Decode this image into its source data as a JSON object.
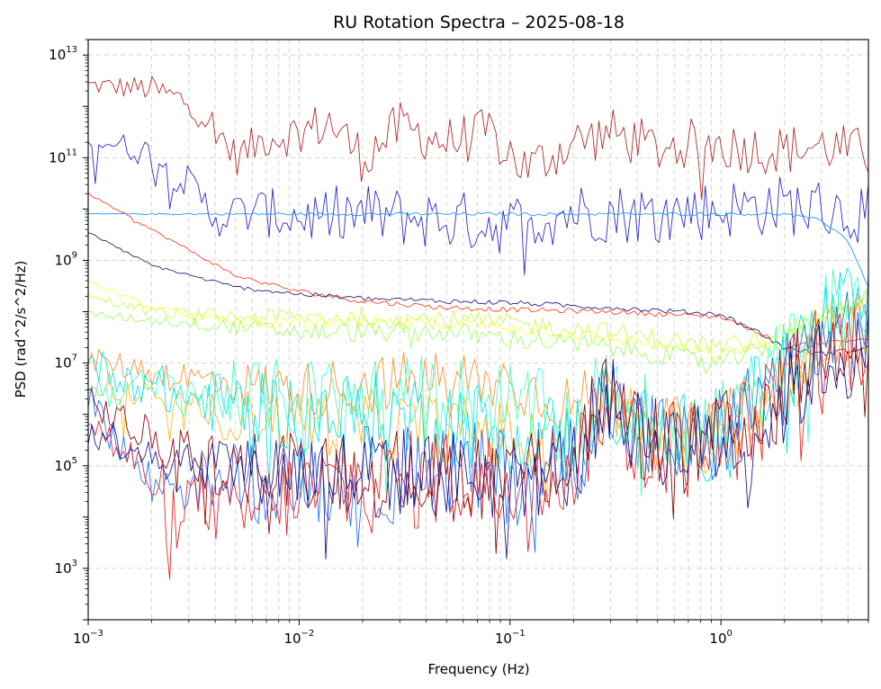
{
  "chart_data": {
    "type": "line",
    "title": "RU Rotation Spectra – 2025-08-18",
    "xlabel": "Frequency (Hz)",
    "ylabel": "PSD (rad^2/s^2/Hz)",
    "xscale": "log",
    "yscale": "log",
    "xlim": [
      0.001,
      5
    ],
    "ylim": [
      100,
      20000000000000.0
    ],
    "grid": true,
    "legend": "none",
    "x_ticks": [
      {
        "value": 0.001,
        "base": "10",
        "exp": "−3"
      },
      {
        "value": 0.01,
        "base": "10",
        "exp": "−2"
      },
      {
        "value": 0.1,
        "base": "10",
        "exp": "−1"
      },
      {
        "value": 1,
        "base": "10",
        "exp": "0"
      }
    ],
    "y_ticks": [
      {
        "value": 1000,
        "base": "10",
        "exp": "3"
      },
      {
        "value": 100000,
        "base": "10",
        "exp": "5"
      },
      {
        "value": 10000000,
        "base": "10",
        "exp": "7"
      },
      {
        "value": 1000000000,
        "base": "10",
        "exp": "9"
      },
      {
        "value": 100000000000,
        "base": "10",
        "exp": "11"
      },
      {
        "value": 10000000000000,
        "base": "10",
        "exp": "13"
      }
    ],
    "series": [
      {
        "color": "#b22222",
        "x": [
          0.001,
          0.002,
          0.003,
          0.004,
          0.005,
          0.007,
          0.01,
          0.014,
          0.02,
          0.03,
          0.05,
          0.08,
          0.12,
          0.2,
          0.3,
          0.5,
          0.8,
          1.2,
          2,
          3,
          5
        ],
        "y": [
          2600000000000.0,
          2200000000000.0,
          1200000000000.0,
          400000000000.0,
          100000000000.0,
          250000000000.0,
          300000000000.0,
          500000000000.0,
          100000000000.0,
          400000000000.0,
          200000000000.0,
          300000000000.0,
          60000000000.0,
          200000000000.0,
          300000000000.0,
          150000000000.0,
          200000000000.0,
          160000000000.0,
          140000000000.0,
          170000000000.0,
          120000000000.0
        ],
        "jitter": 0.5
      },
      {
        "color": "#2222cc",
        "x": [
          0.001,
          0.002,
          0.003,
          0.004,
          0.006,
          0.01,
          0.02,
          0.05,
          0.1,
          0.2,
          0.5,
          1,
          2,
          3,
          5
        ],
        "y": [
          250000000000.0,
          120000000000.0,
          30000000000.0,
          7000000000.0,
          9000000000.0,
          7000000000.0,
          8000000000.0,
          6000000000.0,
          5000000000.0,
          9000000000.0,
          8000000000.0,
          10000000000.0,
          12000000000.0,
          10000000000.0,
          8000000000.0
        ],
        "jitter": 0.6
      },
      {
        "color": "#1e90ff",
        "x": [
          0.001,
          0.01,
          0.1,
          0.5,
          1,
          2,
          3,
          4,
          5
        ],
        "y": [
          8000000000.0,
          8000000000.0,
          8000000000.0,
          8000000000.0,
          8000000000.0,
          8000000000.0,
          6000000000.0,
          2500000000.0,
          300000000.0
        ],
        "jitter": 0.03
      },
      {
        "color": "#ff3b1f",
        "x": [
          0.001,
          0.002,
          0.005,
          0.01,
          0.02,
          0.05,
          0.1,
          0.3,
          1,
          1.5,
          2,
          3,
          5
        ],
        "y": [
          20000000000.0,
          4000000000.0,
          500000000.0,
          250000000.0,
          160000000.0,
          120000000.0,
          110000000.0,
          100000000.0,
          80000000.0,
          40000000.0,
          20000000.0,
          25000000.0,
          30000000.0
        ],
        "jitter": 0.05
      },
      {
        "color": "#191970",
        "x": [
          0.001,
          0.002,
          0.005,
          0.01,
          0.02,
          0.05,
          0.1,
          0.3,
          1,
          1.5,
          2,
          3,
          5
        ],
        "y": [
          3500000000.0,
          800000000.0,
          300000000.0,
          220000000.0,
          180000000.0,
          160000000.0,
          150000000.0,
          120000000.0,
          90000000.0,
          40000000.0,
          20000000.0,
          15000000.0,
          20000000.0
        ],
        "jitter": 0.05
      },
      {
        "color": "#ffff33",
        "x": [
          0.001,
          0.002,
          0.005,
          0.01,
          0.05,
          0.1,
          0.3,
          1,
          2,
          3,
          5
        ],
        "y": [
          400000000.0,
          120000000.0,
          60000000.0,
          60000000.0,
          60000000.0,
          50000000.0,
          30000000.0,
          15000000.0,
          30000000.0,
          80000000.0,
          150000000.0
        ],
        "jitter": 0.12
      },
      {
        "color": "#c8ff3c",
        "x": [
          0.001,
          0.002,
          0.005,
          0.01,
          0.05,
          0.1,
          0.3,
          1,
          2,
          3,
          5
        ],
        "y": [
          200000000.0,
          100000000.0,
          80000000.0,
          80000000.0,
          70000000.0,
          60000000.0,
          40000000.0,
          20000000.0,
          40000000.0,
          100000000.0,
          200000000.0
        ],
        "jitter": 0.2
      },
      {
        "color": "#9cff5a",
        "x": [
          0.001,
          0.003,
          0.01,
          0.05,
          0.1,
          0.3,
          1,
          2,
          3,
          5
        ],
        "y": [
          90000000.0,
          60000000.0,
          40000000.0,
          40000000.0,
          30000000.0,
          20000000.0,
          10000000.0,
          25000000.0,
          90000000.0,
          200000000.0
        ],
        "jitter": 0.2
      },
      {
        "color": "#ff8c28",
        "x": [
          0.001,
          0.003,
          0.01,
          0.05,
          0.1,
          0.2,
          0.28,
          0.4,
          0.8,
          1.5,
          3,
          5
        ],
        "y": [
          12000000.0,
          5000000.0,
          3000000.0,
          5000000.0,
          4000000.0,
          1500000.0,
          3000000.0,
          1000000.0,
          400000.0,
          2000000.0,
          30000000.0,
          80000000.0
        ],
        "jitter": 0.6
      },
      {
        "color": "#ffb414",
        "x": [
          0.001,
          0.003,
          0.01,
          0.05,
          0.1,
          0.2,
          0.28,
          0.4,
          0.8,
          1.5,
          3,
          5
        ],
        "y": [
          5000000.0,
          1000000.0,
          800000.0,
          500000.0,
          400000.0,
          300000.0,
          2500000.0,
          600000.0,
          300000.0,
          1000000.0,
          20000000.0,
          60000000.0
        ],
        "jitter": 0.7
      },
      {
        "color": "#3cffc8",
        "x": [
          0.001,
          0.003,
          0.01,
          0.05,
          0.1,
          0.2,
          0.28,
          0.4,
          0.8,
          1.5,
          3,
          5
        ],
        "y": [
          3000000.0,
          3000000.0,
          2000000.0,
          2000000.0,
          1500000.0,
          600000.0,
          3000000.0,
          1000000.0,
          500000.0,
          3000000.0,
          80000000.0,
          200000000.0
        ],
        "jitter": 0.9
      },
      {
        "color": "#00e6e6",
        "x": [
          0.001,
          0.003,
          0.01,
          0.05,
          0.1,
          0.2,
          0.28,
          0.4,
          0.8,
          1.5,
          3,
          5
        ],
        "y": [
          10000000.0,
          2000000.0,
          1000000.0,
          800000.0,
          500000.0,
          300000.0,
          2000000.0,
          500000.0,
          300000.0,
          2000000.0,
          60000000.0,
          200000000.0
        ],
        "jitter": 0.9
      },
      {
        "color": "#1e6eff",
        "x": [
          0.001,
          0.002,
          0.005,
          0.01,
          0.05,
          0.1,
          0.2,
          0.28,
          0.4,
          0.8,
          1.5,
          3,
          5
        ],
        "y": [
          2000000.0,
          40000.0,
          60000.0,
          50000.0,
          80000.0,
          60000.0,
          150000.0,
          2000000.0,
          400000.0,
          200000.0,
          2000000.0,
          30000000.0,
          60000000.0
        ],
        "jitter": 1.0
      },
      {
        "color": "#8b0000",
        "x": [
          0.001,
          0.002,
          0.005,
          0.01,
          0.05,
          0.1,
          0.2,
          0.28,
          0.4,
          0.8,
          1.5,
          3,
          5
        ],
        "y": [
          2000000.0,
          300000.0,
          80000.0,
          100000.0,
          60000.0,
          80000.0,
          120000.0,
          3000000.0,
          400000.0,
          200000.0,
          1000000.0,
          20000000.0,
          50000000.0
        ],
        "jitter": 0.9
      },
      {
        "color": "#e61e1e",
        "x": [
          0.001,
          0.002,
          0.005,
          0.01,
          0.05,
          0.1,
          0.2,
          0.28,
          0.4,
          0.8,
          1.5,
          3,
          5
        ],
        "y": [
          800000.0,
          50000.0,
          10000.0,
          30000.0,
          60000.0,
          50000.0,
          100000.0,
          2000000.0,
          300000.0,
          200000.0,
          800000.0,
          20000000.0,
          30000000.0
        ],
        "jitter": 1.0
      },
      {
        "color": "#14148c",
        "x": [
          0.001,
          0.002,
          0.005,
          0.01,
          0.05,
          0.1,
          0.2,
          0.28,
          0.4,
          0.8,
          1.5,
          3,
          5
        ],
        "y": [
          500000.0,
          200000.0,
          100000.0,
          80000.0,
          70000.0,
          60000.0,
          100000.0,
          2500000.0,
          400000.0,
          200000.0,
          500000.0,
          10000000.0,
          15000000.0
        ],
        "jitter": 0.9
      }
    ]
  }
}
